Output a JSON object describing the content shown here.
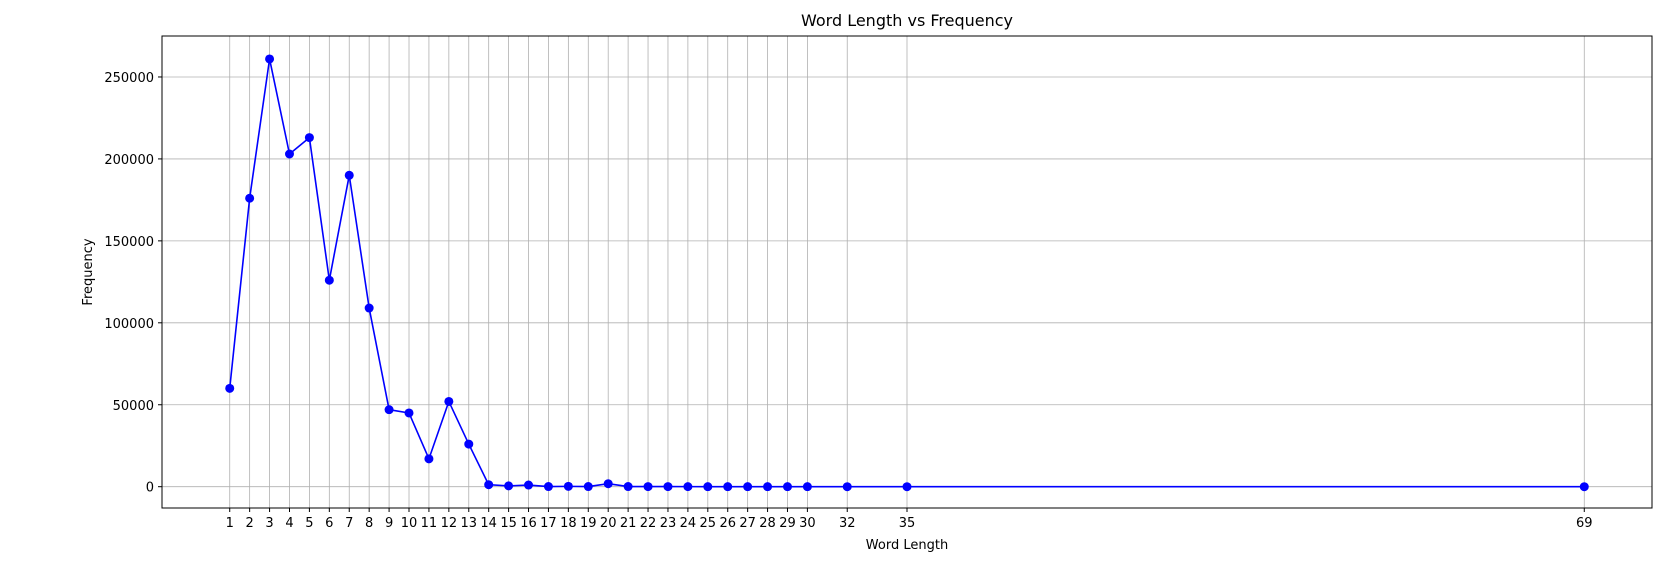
{
  "chart_data": {
    "type": "line",
    "title": "Word Length vs Frequency",
    "xlabel": "Word Length",
    "ylabel": "Frequency",
    "xlim": [
      -2.4,
      72.4
    ],
    "ylim": [
      -13000,
      275000
    ],
    "grid": true,
    "color": "#0000ff",
    "x": [
      1,
      2,
      3,
      4,
      5,
      6,
      7,
      8,
      9,
      10,
      11,
      12,
      13,
      14,
      15,
      16,
      17,
      18,
      19,
      20,
      21,
      22,
      23,
      24,
      25,
      26,
      27,
      28,
      29,
      30,
      32,
      35,
      69
    ],
    "y": [
      60000,
      176000,
      261000,
      203000,
      213000,
      126000,
      190000,
      109000,
      47000,
      45000,
      17000,
      52000,
      26000,
      1200,
      500,
      1000,
      100,
      200,
      100,
      1800,
      100,
      80,
      60,
      40,
      30,
      20,
      15,
      10,
      8,
      5,
      3,
      2,
      1
    ],
    "xticks": [
      1,
      2,
      3,
      4,
      5,
      6,
      7,
      8,
      9,
      10,
      11,
      12,
      13,
      14,
      15,
      16,
      17,
      18,
      19,
      20,
      21,
      22,
      23,
      24,
      25,
      26,
      27,
      28,
      29,
      30,
      32,
      35,
      69
    ],
    "yticks": [
      0,
      50000,
      100000,
      150000,
      200000,
      250000
    ]
  }
}
